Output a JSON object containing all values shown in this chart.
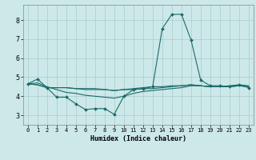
{
  "xlabel": "Humidex (Indice chaleur)",
  "ylabel": "",
  "background_color": "#cce8e8",
  "grid_color": "#aacccc",
  "line_color": "#1a6b6b",
  "xlim": [
    -0.5,
    23.5
  ],
  "ylim": [
    2.5,
    8.8
  ],
  "xticks": [
    0,
    1,
    2,
    3,
    4,
    5,
    6,
    7,
    8,
    9,
    10,
    11,
    12,
    13,
    14,
    15,
    16,
    17,
    18,
    19,
    20,
    21,
    22,
    23
  ],
  "yticks": [
    3,
    4,
    5,
    6,
    7,
    8
  ],
  "lines": [
    {
      "x": [
        0,
        1,
        2,
        3,
        4,
        5,
        6,
        7,
        8,
        9,
        10,
        11,
        12,
        13,
        14,
        15,
        16,
        17,
        18,
        19,
        20,
        21,
        22,
        23
      ],
      "y": [
        4.65,
        4.9,
        4.45,
        3.95,
        3.95,
        3.6,
        3.3,
        3.35,
        3.35,
        3.05,
        4.0,
        4.35,
        4.4,
        4.5,
        7.55,
        8.3,
        8.3,
        6.95,
        4.85,
        4.55,
        4.55,
        4.5,
        4.6,
        4.45
      ],
      "marker": true
    },
    {
      "x": [
        0,
        1,
        2,
        3,
        4,
        5,
        6,
        7,
        8,
        9,
        10,
        11,
        12,
        13,
        14,
        15,
        16,
        17,
        18,
        19,
        20,
        21,
        22,
        23
      ],
      "y": [
        4.65,
        4.6,
        4.45,
        4.45,
        4.45,
        4.4,
        4.4,
        4.4,
        4.35,
        4.3,
        4.35,
        4.4,
        4.45,
        4.5,
        4.5,
        4.55,
        4.55,
        4.6,
        4.55,
        4.5,
        4.5,
        4.55,
        4.6,
        4.55
      ],
      "marker": false
    },
    {
      "x": [
        0,
        1,
        2,
        3,
        4,
        5,
        6,
        7,
        8,
        9,
        10,
        11,
        12,
        13,
        14,
        15,
        16,
        17,
        18,
        19,
        20,
        21,
        22,
        23
      ],
      "y": [
        4.65,
        4.6,
        4.45,
        4.45,
        4.45,
        4.4,
        4.35,
        4.35,
        4.35,
        4.3,
        4.35,
        4.35,
        4.4,
        4.4,
        4.45,
        4.5,
        4.55,
        4.6,
        4.55,
        4.5,
        4.5,
        4.5,
        4.55,
        4.5
      ],
      "marker": false
    },
    {
      "x": [
        0,
        1,
        2,
        3,
        4,
        5,
        6,
        7,
        8,
        9,
        10,
        11,
        12,
        13,
        14,
        15,
        16,
        17,
        18,
        19,
        20,
        21,
        22,
        23
      ],
      "y": [
        4.65,
        4.7,
        4.5,
        4.35,
        4.2,
        4.15,
        4.05,
        4.0,
        3.95,
        3.9,
        4.0,
        4.15,
        4.25,
        4.3,
        4.35,
        4.4,
        4.45,
        4.55,
        4.55,
        4.5,
        4.5,
        4.5,
        4.55,
        4.5
      ],
      "marker": false
    }
  ]
}
